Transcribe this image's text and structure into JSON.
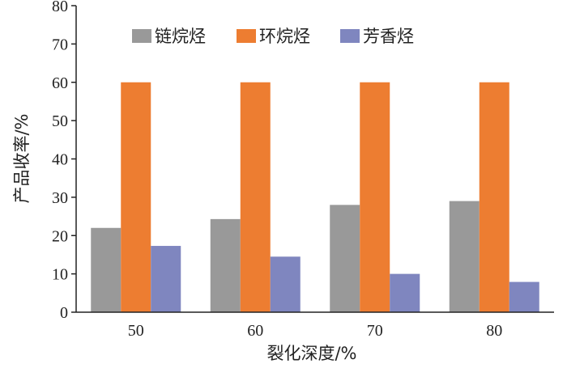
{
  "chart_data": {
    "type": "bar",
    "categories": [
      "50",
      "60",
      "70",
      "80"
    ],
    "series": [
      {
        "name": "链烷烃",
        "values": [
          22,
          24.3,
          28,
          29
        ],
        "color": "#999999"
      },
      {
        "name": "环烷烃",
        "values": [
          60,
          60,
          60,
          60
        ],
        "color": "#ED7D31"
      },
      {
        "name": "芳香烃",
        "values": [
          17.3,
          14.5,
          10,
          7.9
        ],
        "color": "#7F86BF"
      }
    ],
    "title": "",
    "xlabel": "裂化深度/%",
    "ylabel": "产品收率/%",
    "ylim": [
      0,
      80
    ],
    "yticks": [
      "0",
      "10",
      "20",
      "30",
      "40",
      "50",
      "60",
      "70",
      "80"
    ],
    "grid": false,
    "legend_position": "top-center"
  }
}
